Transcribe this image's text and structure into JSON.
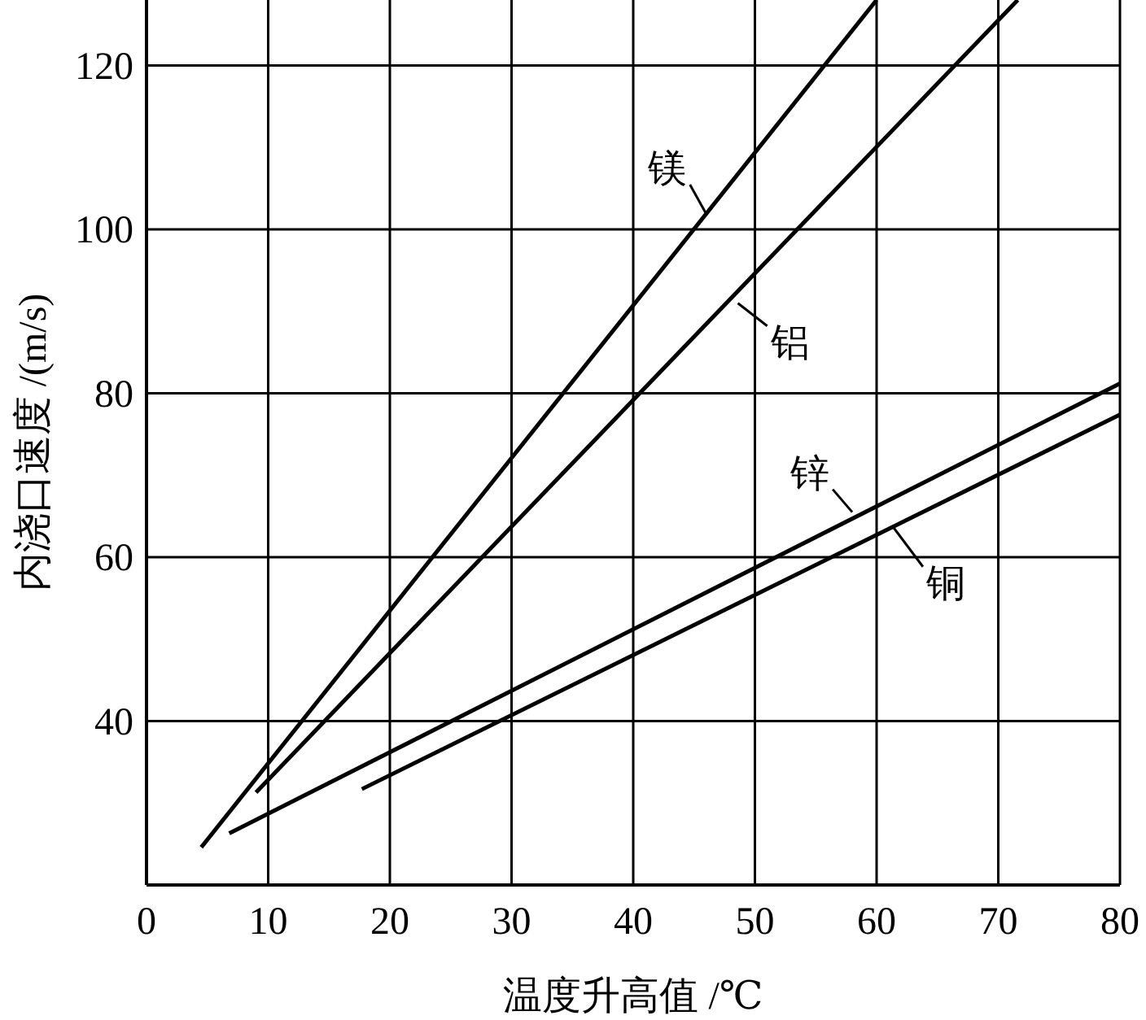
{
  "chart_data": {
    "type": "line",
    "xlabel": "温度升高值 /℃",
    "ylabel": "内浇口速度 /(m/s)",
    "xlim": [
      0,
      80
    ],
    "ylim": [
      20,
      128
    ],
    "xticks": [
      0,
      10,
      20,
      30,
      40,
      50,
      60,
      70,
      80
    ],
    "yticks": [
      40,
      60,
      80,
      100,
      120
    ],
    "grid": true,
    "marker": "none",
    "line_style": "solid",
    "series": [
      {
        "color": "#000000",
        "x": [
          4.5,
          60
        ],
        "values": [
          24.6,
          128
        ]
      },
      {
        "color": "#000000",
        "x": [
          9,
          71.6
        ],
        "values": [
          31.3,
          128
        ]
      },
      {
        "color": "#000000",
        "x": [
          6.8,
          80
        ],
        "values": [
          26.3,
          81.2
        ]
      },
      {
        "color": "#000000",
        "x": [
          17.7,
          80
        ],
        "values": [
          31.7,
          77.4
        ]
      }
    ],
    "annotations": [
      {
        "text": "镁",
        "x": 46,
        "y": 101.9
      },
      {
        "text": "铝",
        "x": 48.6,
        "y": 91
      },
      {
        "text": "锌",
        "x": 58,
        "y": 65.5
      },
      {
        "text": "铜",
        "x": 61.4,
        "y": 63.6
      }
    ]
  }
}
